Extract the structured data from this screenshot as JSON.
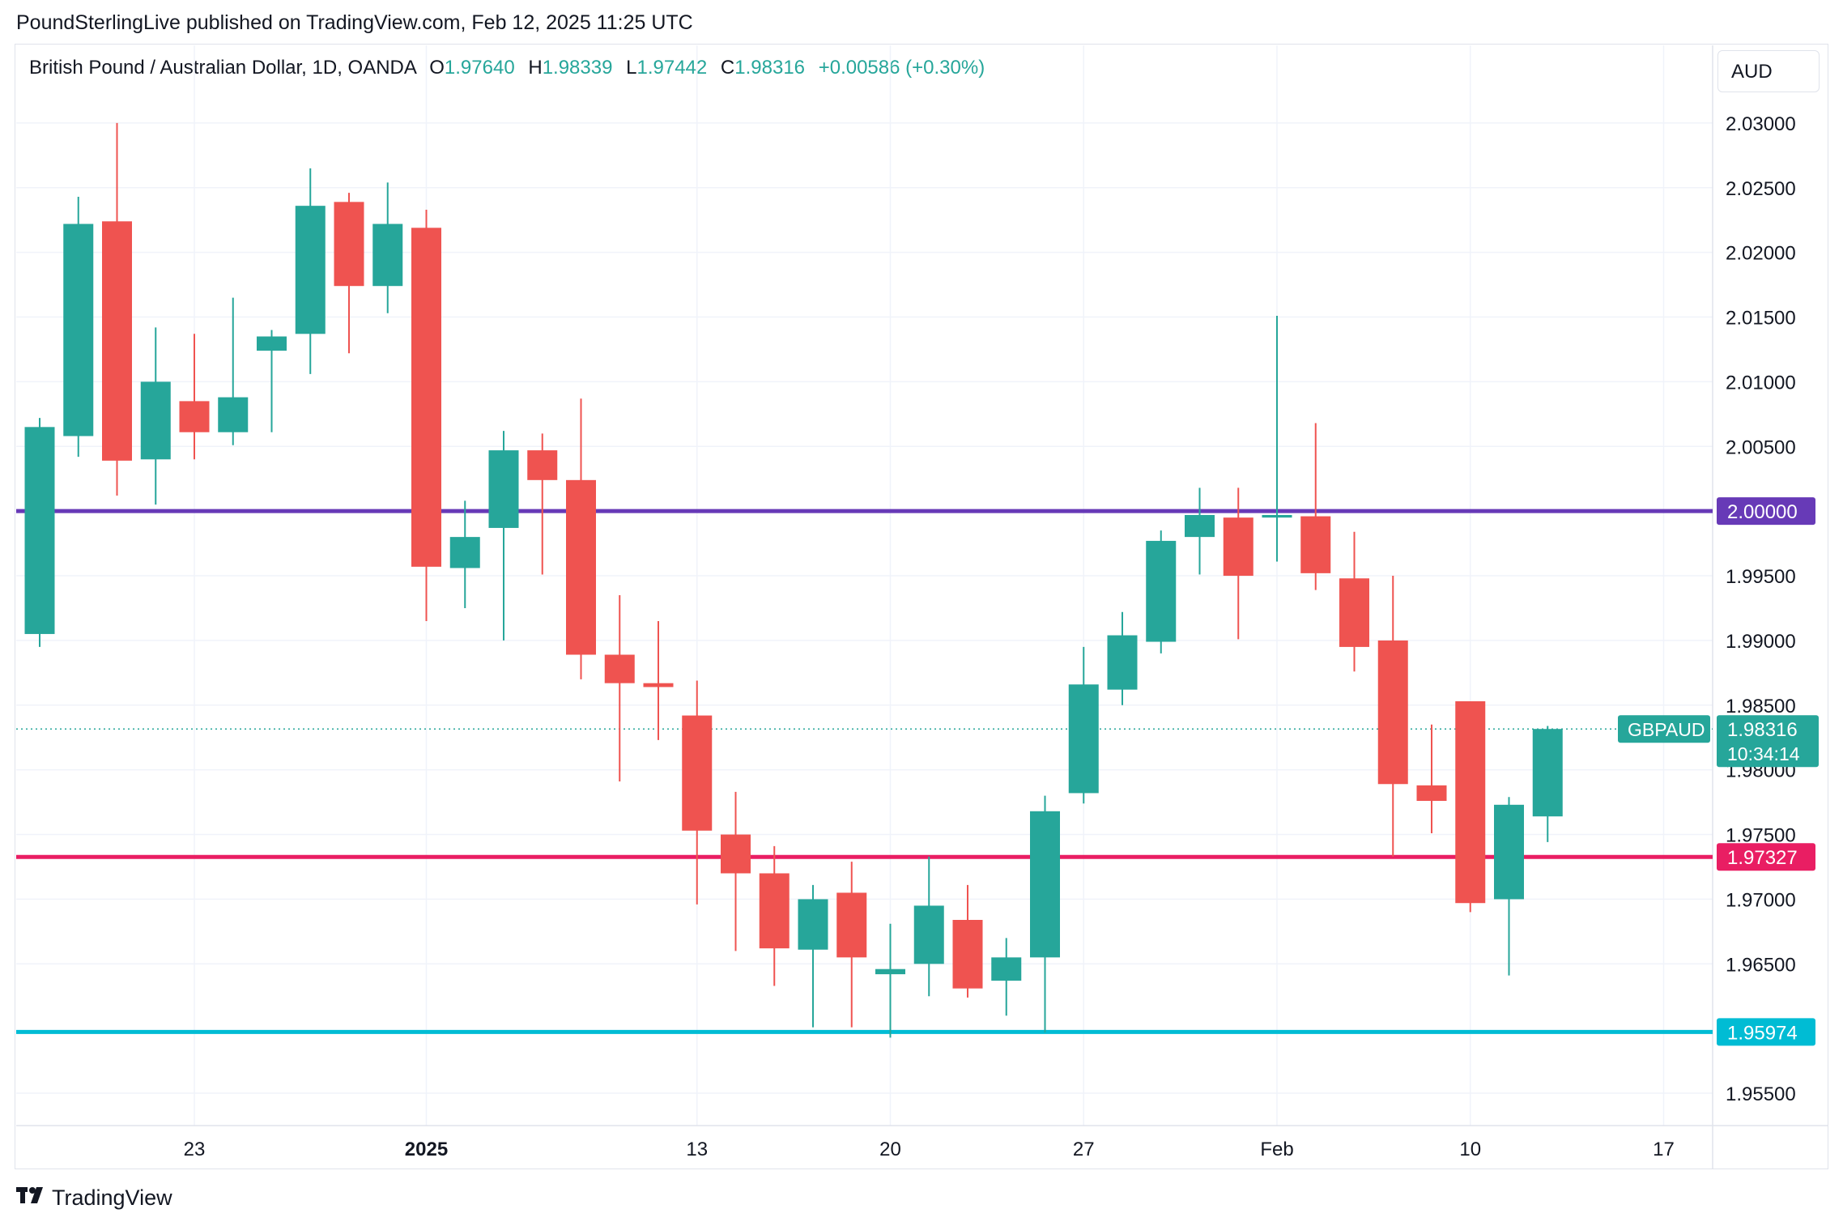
{
  "header": {
    "publisher_line": "PoundSterlingLive published on TradingView.com, Feb 12, 2025 11:25 UTC"
  },
  "legend": {
    "instrument": "British Pound / Australian Dollar, 1D, OANDA",
    "o_label": "O",
    "o_value": "1.97640",
    "h_label": "H",
    "h_value": "1.98339",
    "l_label": "L",
    "l_value": "1.97442",
    "c_label": "C",
    "c_value": "1.98316",
    "change": "+0.00586 (+0.30%)"
  },
  "currency": "AUD",
  "footer": {
    "brand": "TradingView"
  },
  "colors": {
    "up": "#26a69a",
    "down": "#ef5350",
    "level_2000": "#673ab7",
    "level_19733": "#e91e63",
    "level_19597": "#00bcd4",
    "grid": "#f0f3fa",
    "axis_text": "#131722"
  },
  "chart_data": {
    "type": "candlestick",
    "symbol": "GBPAUD",
    "ylim": [
      1.9525,
      2.0335
    ],
    "y_ticks": [
      "2.03000",
      "2.02500",
      "2.02000",
      "2.01500",
      "2.01000",
      "2.00500",
      "2.00000",
      "1.99500",
      "1.99000",
      "1.98500",
      "1.98000",
      "1.97500",
      "1.97000",
      "1.96500",
      "1.95500"
    ],
    "x_ticks": [
      {
        "label": "23",
        "index": 4,
        "bold": false
      },
      {
        "label": "2025",
        "index": 10,
        "bold": true
      },
      {
        "label": "13",
        "index": 17,
        "bold": false
      },
      {
        "label": "20",
        "index": 22,
        "bold": false
      },
      {
        "label": "27",
        "index": 27,
        "bold": false
      },
      {
        "label": "Feb",
        "index": 32,
        "bold": false
      },
      {
        "label": "10",
        "index": 37,
        "bold": false
      },
      {
        "label": "17",
        "index": 42,
        "bold": false
      }
    ],
    "candles": [
      {
        "o": 1.9905,
        "h": 2.0072,
        "l": 1.9895,
        "c": 2.0065
      },
      {
        "o": 2.0058,
        "h": 2.0243,
        "l": 2.0042,
        "c": 2.0222
      },
      {
        "o": 2.0224,
        "h": 2.03,
        "l": 2.0012,
        "c": 2.0039
      },
      {
        "o": 2.004,
        "h": 2.0142,
        "l": 2.0005,
        "c": 2.01
      },
      {
        "o": 2.0085,
        "h": 2.0137,
        "l": 2.004,
        "c": 2.0061
      },
      {
        "o": 2.0061,
        "h": 2.0165,
        "l": 2.0051,
        "c": 2.0088
      },
      {
        "o": 2.0124,
        "h": 2.014,
        "l": 2.0061,
        "c": 2.0135
      },
      {
        "o": 2.0137,
        "h": 2.0265,
        "l": 2.0106,
        "c": 2.0236
      },
      {
        "o": 2.0239,
        "h": 2.0246,
        "l": 2.0122,
        "c": 2.0174
      },
      {
        "o": 2.0174,
        "h": 2.0254,
        "l": 2.0153,
        "c": 2.0222
      },
      {
        "o": 2.0219,
        "h": 2.0233,
        "l": 1.9915,
        "c": 1.9957
      },
      {
        "o": 1.9956,
        "h": 2.0008,
        "l": 1.9925,
        "c": 1.998
      },
      {
        "o": 1.9987,
        "h": 2.0062,
        "l": 1.99,
        "c": 2.0047
      },
      {
        "o": 2.0047,
        "h": 2.006,
        "l": 1.9951,
        "c": 2.0024
      },
      {
        "o": 2.0024,
        "h": 2.0087,
        "l": 1.987,
        "c": 1.9889
      },
      {
        "o": 1.9889,
        "h": 1.9935,
        "l": 1.9791,
        "c": 1.9867
      },
      {
        "o": 1.9867,
        "h": 1.9915,
        "l": 1.9823,
        "c": 1.9864
      },
      {
        "o": 1.9842,
        "h": 1.9869,
        "l": 1.9696,
        "c": 1.9753
      },
      {
        "o": 1.975,
        "h": 1.9783,
        "l": 1.966,
        "c": 1.972
      },
      {
        "o": 1.972,
        "h": 1.9741,
        "l": 1.9633,
        "c": 1.9662
      },
      {
        "o": 1.9661,
        "h": 1.9711,
        "l": 1.9601,
        "c": 1.97
      },
      {
        "o": 1.9705,
        "h": 1.9729,
        "l": 1.9601,
        "c": 1.9655
      },
      {
        "o": 1.9642,
        "h": 1.9681,
        "l": 1.9593,
        "c": 1.9646
      },
      {
        "o": 1.965,
        "h": 1.9733,
        "l": 1.9625,
        "c": 1.9695
      },
      {
        "o": 1.9684,
        "h": 1.9711,
        "l": 1.9624,
        "c": 1.9631
      },
      {
        "o": 1.9637,
        "h": 1.967,
        "l": 1.961,
        "c": 1.9655
      },
      {
        "o": 1.9655,
        "h": 1.978,
        "l": 1.9597,
        "c": 1.9768
      },
      {
        "o": 1.9782,
        "h": 1.9895,
        "l": 1.9774,
        "c": 1.9866
      },
      {
        "o": 1.9862,
        "h": 1.9922,
        "l": 1.985,
        "c": 1.9904
      },
      {
        "o": 1.9899,
        "h": 1.9985,
        "l": 1.989,
        "c": 1.9977
      },
      {
        "o": 1.998,
        "h": 2.0018,
        "l": 1.9951,
        "c": 1.9997
      },
      {
        "o": 1.9995,
        "h": 2.0018,
        "l": 1.9901,
        "c": 1.995
      },
      {
        "o": 1.9995,
        "h": 2.0151,
        "l": 1.9961,
        "c": 1.9997
      },
      {
        "o": 1.9996,
        "h": 2.0068,
        "l": 1.9939,
        "c": 1.9952
      },
      {
        "o": 1.9948,
        "h": 1.9984,
        "l": 1.9876,
        "c": 1.9895
      },
      {
        "o": 1.99,
        "h": 1.995,
        "l": 1.9733,
        "c": 1.9789
      },
      {
        "o": 1.9788,
        "h": 1.9835,
        "l": 1.9751,
        "c": 1.9776
      },
      {
        "o": 1.9853,
        "h": 1.9853,
        "l": 1.969,
        "c": 1.9697
      },
      {
        "o": 1.97,
        "h": 1.9779,
        "l": 1.9641,
        "c": 1.9773
      },
      {
        "o": 1.9764,
        "h": 1.98339,
        "l": 1.97442,
        "c": 1.98316
      }
    ],
    "levels": [
      {
        "value": 2.0,
        "label": "2.00000",
        "color": "#673ab7"
      },
      {
        "value": 1.97327,
        "label": "1.97327",
        "color": "#e91e63"
      },
      {
        "value": 1.95974,
        "label": "1.95974",
        "color": "#00bcd4"
      }
    ],
    "last_price": {
      "value": 1.98316,
      "label": "1.98316",
      "countdown": "10:34:14",
      "symbol_tag": "GBPAUD",
      "color": "#26a69a"
    }
  }
}
